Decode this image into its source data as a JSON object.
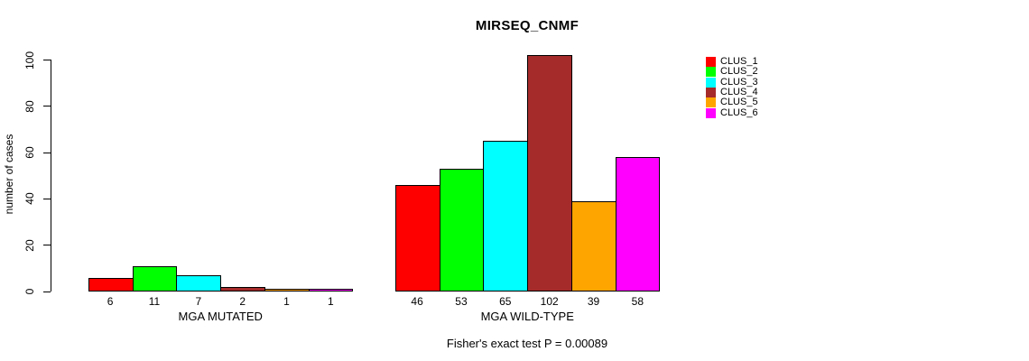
{
  "chart_data": {
    "type": "bar",
    "title": "MIRSEQ_CNMF",
    "ylabel": "number of cases",
    "xlabel": "",
    "ylim": [
      0,
      100
    ],
    "yticks": [
      0,
      20,
      40,
      60,
      80,
      100
    ],
    "grid": false,
    "legend_position": "top-right",
    "categories": [
      "MGA MUTATED",
      "MGA WILD-TYPE"
    ],
    "groups": [
      {
        "label": "MGA MUTATED",
        "values": [
          6,
          11,
          7,
          2,
          1,
          1
        ]
      },
      {
        "label": "MGA WILD-TYPE",
        "values": [
          46,
          53,
          65,
          102,
          39,
          58
        ]
      }
    ],
    "series": [
      {
        "name": "CLUS_1",
        "color": "#FF0000",
        "values": [
          6,
          46
        ]
      },
      {
        "name": "CLUS_2",
        "color": "#00FF00",
        "values": [
          11,
          53
        ]
      },
      {
        "name": "CLUS_3",
        "color": "#00FFFF",
        "values": [
          7,
          65
        ]
      },
      {
        "name": "CLUS_4",
        "color": "#A52A2A",
        "values": [
          2,
          102
        ]
      },
      {
        "name": "CLUS_5",
        "color": "#FFA500",
        "values": [
          1,
          39
        ]
      },
      {
        "name": "CLUS_6",
        "color": "#FF00FF",
        "values": [
          1,
          58
        ]
      }
    ],
    "annotation": "Fisher's exact test P = 0.00089"
  },
  "colors": {
    "axis": "#000000",
    "background": "#ffffff",
    "text": "#000000"
  }
}
